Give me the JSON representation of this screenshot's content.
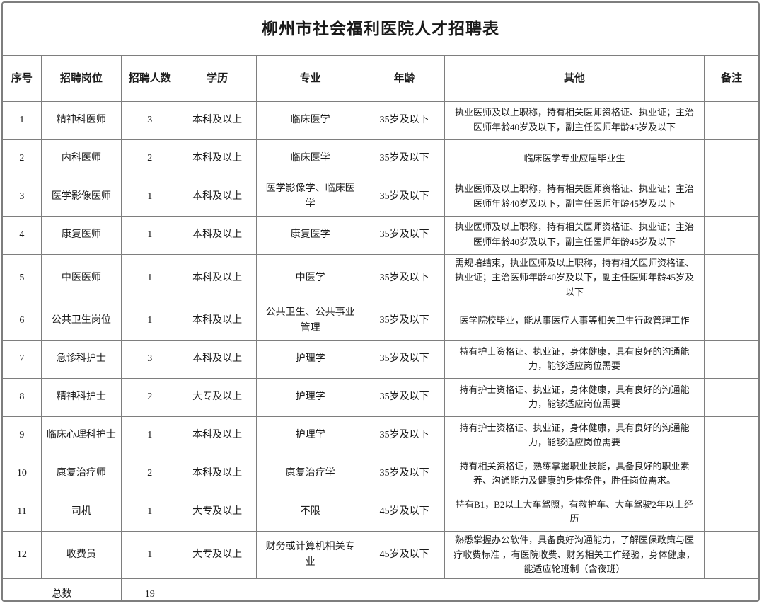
{
  "title": "柳州市社会福利医院人才招聘表",
  "table": {
    "headers": [
      "序号",
      "招聘岗位",
      "招聘人数",
      "学历",
      "专业",
      "年龄",
      "其他",
      "备注"
    ],
    "rows": [
      [
        "1",
        "精神科医师",
        "3",
        "本科及以上",
        "临床医学",
        "35岁及以下",
        "执业医师及以上职称，持有相关医师资格证、执业证；主治医师年龄40岁及以下，副主任医师年龄45岁及以下",
        ""
      ],
      [
        "2",
        "内科医师",
        "2",
        "本科及以上",
        "临床医学",
        "35岁及以下",
        "临床医学专业应届毕业生",
        ""
      ],
      [
        "3",
        "医学影像医师",
        "1",
        "本科及以上",
        "医学影像学、临床医学",
        "35岁及以下",
        "执业医师及以上职称，持有相关医师资格证、执业证；主治医师年龄40岁及以下，副主任医师年龄45岁及以下",
        ""
      ],
      [
        "4",
        "康复医师",
        "1",
        "本科及以上",
        "康复医学",
        "35岁及以下",
        "执业医师及以上职称，持有相关医师资格证、执业证；主治医师年龄40岁及以下，副主任医师年龄45岁及以下",
        ""
      ],
      [
        "5",
        "中医医师",
        "1",
        "本科及以上",
        "中医学",
        "35岁及以下",
        "需规培结束，执业医师及以上职称，持有相关医师资格证、执业证；主治医师年龄40岁及以下，副主任医师年龄45岁及以下",
        ""
      ],
      [
        "6",
        "公共卫生岗位",
        "1",
        "本科及以上",
        "公共卫生、公共事业管理",
        "35岁及以下",
        "医学院校毕业，能从事医疗人事等相关卫生行政管理工作",
        ""
      ],
      [
        "7",
        "急诊科护士",
        "3",
        "本科及以上",
        "护理学",
        "35岁及以下",
        "持有护士资格证、执业证，身体健康，具有良好的沟通能力，能够适应岗位需要",
        ""
      ],
      [
        "8",
        "精神科护士",
        "2",
        "大专及以上",
        "护理学",
        "35岁及以下",
        "持有护士资格证、执业证，身体健康，具有良好的沟通能力，能够适应岗位需要",
        ""
      ],
      [
        "9",
        "临床心理科护士",
        "1",
        "本科及以上",
        "护理学",
        "35岁及以下",
        "持有护士资格证、执业证，身体健康，具有良好的沟通能力，能够适应岗位需要",
        ""
      ],
      [
        "10",
        "康复治疗师",
        "2",
        "本科及以上",
        "康复治疗学",
        "35岁及以下",
        "持有相关资格证，熟练掌握职业技能，具备良好的职业素养、沟通能力及健康的身体条件，胜任岗位需求。",
        ""
      ],
      [
        "11",
        "司机",
        "1",
        "大专及以上",
        "不限",
        "45岁及以下",
        "持有B1，B2以上大车驾照，有救护车、大车驾驶2年以上经历",
        ""
      ],
      [
        "12",
        "收费员",
        "1",
        "大专及以上",
        "财务或计算机相关专业",
        "45岁及以下",
        "熟悉掌握办公软件，具备良好沟通能力，了解医保政策与医疗收费标准 ，有医院收费、财务相关工作经验，身体健康，能适应轮班制（含夜班）",
        ""
      ]
    ],
    "footer": {
      "label": "总数",
      "total": "19"
    }
  },
  "colors": {
    "border": "#7e7e7e",
    "text": "#1a1a1a",
    "background": "#ffffff"
  }
}
